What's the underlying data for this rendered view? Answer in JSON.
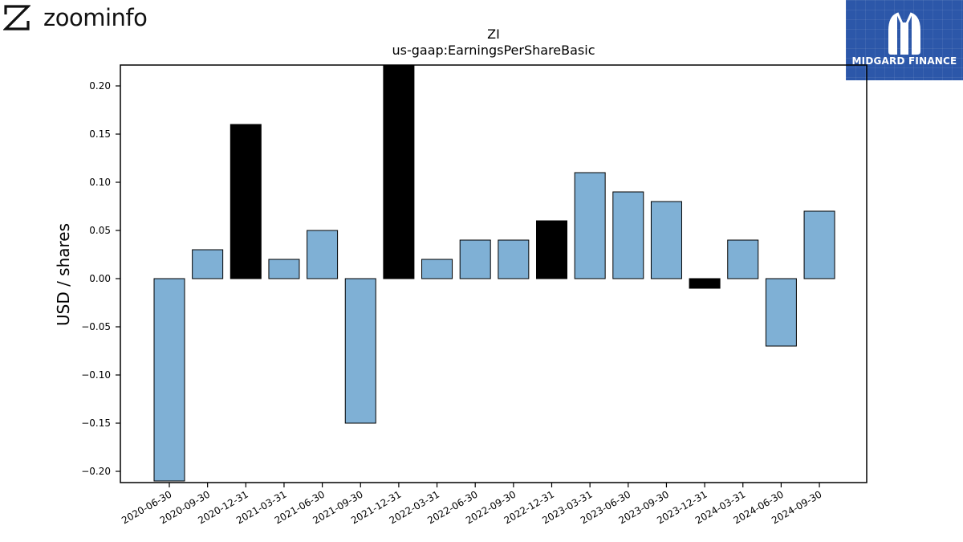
{
  "brand_left": {
    "name": "zoominfo",
    "icon": "zoominfo-z-logo"
  },
  "brand_right": {
    "name": "MIDGARD FINANCE",
    "icon": "midgard-m-logo",
    "color": "#2c57a9"
  },
  "chart_data": {
    "type": "bar",
    "title": "ZI",
    "subtitle": "us-gaap:EarningsPerShareBasic",
    "xlabel": "",
    "ylabel": "USD / shares",
    "ylim": [
      -0.21,
      0.22
    ],
    "yticks": [
      "0.20",
      "0.15",
      "0.10",
      "0.05",
      "0.00",
      "−0.05",
      "−0.10",
      "−0.15",
      "−0.20"
    ],
    "ytick_values": [
      0.2,
      0.15,
      0.1,
      0.05,
      0.0,
      -0.05,
      -0.1,
      -0.15,
      -0.2
    ],
    "categories": [
      "2020-06-30",
      "2020-09-30",
      "2020-12-31",
      "2021-03-31",
      "2021-06-30",
      "2021-09-30",
      "2021-12-31",
      "2022-03-31",
      "2022-06-30",
      "2022-09-30",
      "2022-12-31",
      "2023-03-31",
      "2023-06-30",
      "2023-09-30",
      "2023-12-31",
      "2024-03-31",
      "2024-06-30",
      "2024-09-30"
    ],
    "values": [
      -0.21,
      0.03,
      0.16,
      0.02,
      0.05,
      -0.15,
      0.23,
      0.02,
      0.04,
      0.04,
      0.06,
      0.11,
      0.09,
      0.08,
      -0.01,
      0.04,
      -0.07,
      0.07
    ],
    "highlight": [
      false,
      false,
      true,
      false,
      false,
      false,
      true,
      false,
      false,
      false,
      true,
      false,
      false,
      false,
      true,
      false,
      false,
      false
    ],
    "colors": {
      "normal": "#7fb0d5",
      "highlight": "#000000",
      "edge": "#000000"
    },
    "grid": false,
    "legend": "none"
  }
}
